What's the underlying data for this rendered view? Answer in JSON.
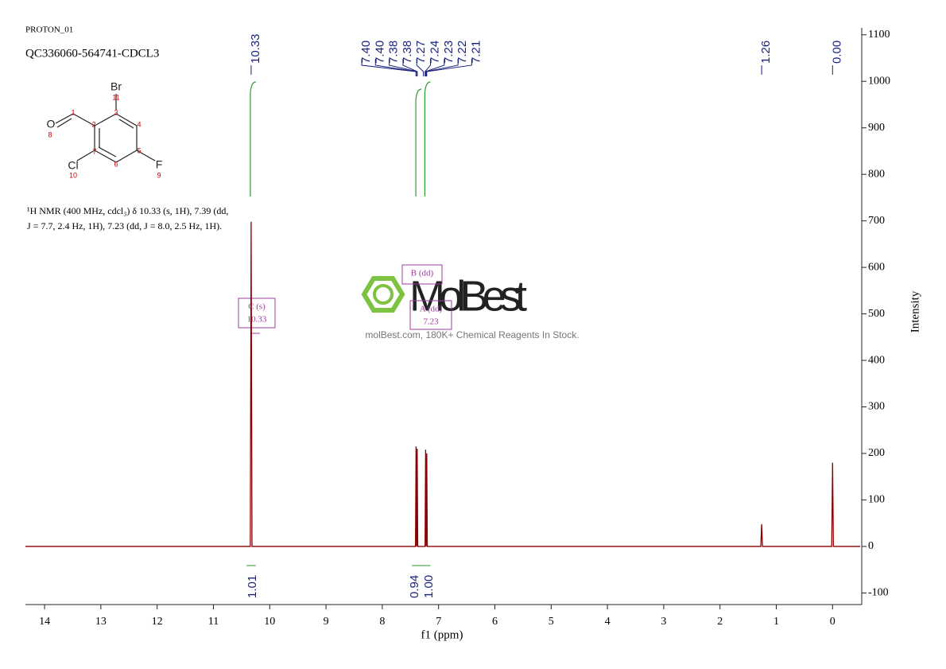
{
  "chart_data": {
    "type": "line",
    "title": "PROTON_01",
    "subtitle": "QC336060-564741-CDCL3",
    "description": [
      "¹H NMR (400 MHz, cdcl₃) δ 10.33 (s, 1H), 7.39 (dd,",
      "J = 7.7, 2.4 Hz, 1H), 7.23 (dd, J = 8.0, 2.5 Hz, 1H)."
    ],
    "x_label": "f1 (ppm)",
    "y_label": "Intensity",
    "color": "#8b0000",
    "x": [
      14.34,
      10.345,
      10.33,
      10.315,
      7.41,
      7.4,
      7.39,
      7.38,
      7.37,
      7.24,
      7.23,
      7.22,
      7.21,
      7.2,
      1.275,
      1.26,
      1.245,
      0.015,
      0,
      -0.015,
      -0.49
    ],
    "values": [
      0,
      0,
      698,
      0,
      0,
      215,
      0,
      210,
      0,
      0,
      208,
      0,
      200,
      0,
      0,
      48,
      0,
      0,
      180,
      0,
      0
    ],
    "xlim": [
      14.34,
      -0.49
    ],
    "ylim": [
      -125,
      1115
    ],
    "xticks": [
      14,
      13,
      12,
      11,
      10,
      9,
      8,
      7,
      6,
      5,
      4,
      3,
      2,
      1,
      0
    ],
    "yticks": [
      -100,
      0,
      100,
      200,
      300,
      400,
      500,
      600,
      700,
      800,
      900,
      1000,
      1100
    ],
    "peak_labels": [
      10.33,
      {
        "value": 7.4,
        "label": "7.40"
      },
      {
        "value": 7.4,
        "label": "7.40"
      },
      7.38,
      7.38,
      7.27,
      7.24,
      7.23,
      7.22,
      7.21,
      1.26,
      {
        "value": 0,
        "label": "0.00"
      }
    ],
    "integrals": [
      1.01,
      0.94,
      {
        "value": 1,
        "label": "1.00"
      }
    ],
    "integral_x": [
      10.33,
      7.39,
      7.23
    ],
    "multiplets": [
      {
        "label": "C (s)",
        "shift": "10.33"
      },
      {
        "label": "B (dd)"
      },
      {
        "label": "A (dd)",
        "shift": "7.23"
      }
    ],
    "structure_labels": [
      "Br",
      "11",
      "O",
      "8",
      "Cl",
      "10",
      "F",
      "9",
      "1",
      "2",
      "3",
      "4",
      "5",
      "6",
      "7"
    ],
    "watermark": "MolBest",
    "watermark_note": "molBest.com, 180K+ Chemical Reagents In Stock."
  }
}
